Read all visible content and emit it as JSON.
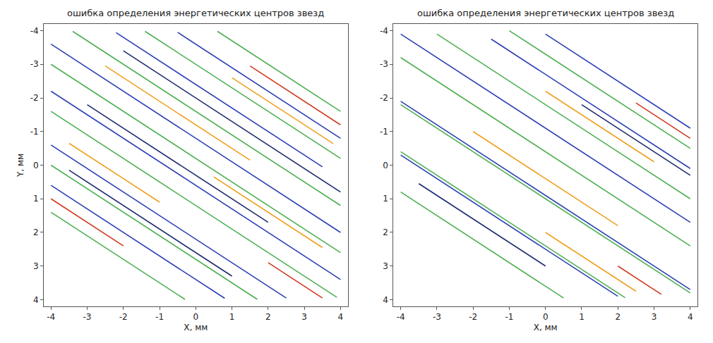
{
  "chart_data": [
    {
      "type": "line",
      "title": "ошибка определения энергетических центров звезд",
      "x_label": "X, мм",
      "y_label": "Y, мм",
      "xlim": [
        -4.2,
        4.2
      ],
      "ylim": [
        4.2,
        -4.2
      ],
      "xticks": [
        -4,
        -3,
        -2,
        -1,
        0,
        1,
        2,
        3,
        4
      ],
      "yticks": [
        -4,
        -3,
        -2,
        -1,
        0,
        1,
        2,
        3,
        4
      ],
      "grid": false,
      "series": [
        {
          "color": "#2b3fb5",
          "x": [
            -0.5,
            4,
            null,
            -2.2,
            3.5,
            null,
            -4,
            4,
            null,
            -4,
            4,
            null,
            -4,
            2.5,
            null,
            -4,
            0.8
          ],
          "values": [
            -3.95,
            -0.8,
            null,
            -3.94,
            0.05,
            null,
            -3.6,
            2.0,
            null,
            -2.2,
            3.4,
            null,
            -0.6,
            3.95,
            null,
            0.6,
            3.96
          ]
        },
        {
          "color": "#4caf50",
          "x": [
            0.6,
            4,
            null,
            -1.4,
            4,
            null,
            -3.4,
            4,
            null,
            -4,
            4,
            null,
            -4,
            3.9,
            null,
            -4,
            1.7,
            null,
            -4,
            -0.3
          ],
          "values": [
            -3.98,
            -1.6,
            null,
            -3.98,
            -0.2,
            null,
            -3.98,
            1.2,
            null,
            -3.0,
            2.6,
            null,
            -1.6,
            3.93,
            null,
            0.0,
            3.99,
            null,
            1.4,
            3.99
          ]
        },
        {
          "color": "#f0a020",
          "x": [
            1.0,
            3.8,
            null,
            -2.5,
            1.5,
            null,
            -3.5,
            -1,
            null,
            0.5,
            3.5
          ],
          "values": [
            -2.6,
            -0.64,
            null,
            -2.95,
            -0.15,
            null,
            -0.65,
            1.1,
            null,
            0.35,
            2.45
          ]
        },
        {
          "color": "#d03a20",
          "x": [
            1.5,
            4,
            null,
            -4,
            -2,
            null,
            2,
            3.5
          ],
          "values": [
            -2.95,
            -1.2,
            null,
            1.0,
            2.4,
            null,
            2.9,
            3.95
          ]
        },
        {
          "color": "#1c2a6e",
          "x": [
            -2,
            4,
            null,
            -3,
            2,
            null,
            -3.5,
            1
          ],
          "values": [
            -3.4,
            0.8,
            null,
            -1.8,
            1.7,
            null,
            0.15,
            3.3
          ]
        }
      ]
    },
    {
      "type": "line",
      "title": "ошибка определения энергетических центров звезд",
      "x_label": "X, мм",
      "xlim": [
        -4.2,
        4.2
      ],
      "ylim": [
        4.2,
        -4.2
      ],
      "xticks": [
        -4,
        -3,
        -2,
        -1,
        0,
        1,
        2,
        3,
        4
      ],
      "yticks": [
        -4,
        -3,
        -2,
        -1,
        0,
        1,
        2,
        3,
        4
      ],
      "grid": false,
      "series": [
        {
          "color": "#2b3fb5",
          "x": [
            0,
            4,
            null,
            -1.5,
            4,
            null,
            -4,
            4,
            null,
            -4,
            4,
            null,
            -4,
            2
          ],
          "values": [
            -3.9,
            -1.1,
            null,
            -3.75,
            0.1,
            null,
            -3.9,
            1.7,
            null,
            -1.9,
            3.7,
            null,
            -0.3,
            3.9
          ]
        },
        {
          "color": "#4caf50",
          "x": [
            -1,
            4,
            null,
            -3,
            4,
            null,
            -4,
            4,
            null,
            -4,
            4,
            null,
            -4,
            2.2,
            null,
            -4,
            0.5
          ],
          "values": [
            -4.0,
            -0.5,
            null,
            -3.9,
            1.0,
            null,
            -3.2,
            2.4,
            null,
            -1.8,
            3.8,
            null,
            -0.4,
            3.94,
            null,
            0.8,
            3.95
          ]
        },
        {
          "color": "#f0a020",
          "x": [
            0,
            3,
            null,
            -2,
            2,
            null,
            0,
            2.5
          ],
          "values": [
            -2.2,
            -0.1,
            null,
            -1.0,
            1.8,
            null,
            2.0,
            3.75
          ]
        },
        {
          "color": "#d03a20",
          "x": [
            2.5,
            4,
            null,
            2,
            3.2
          ],
          "values": [
            -1.85,
            -0.8,
            null,
            3.0,
            3.84
          ]
        },
        {
          "color": "#1c2a6e",
          "x": [
            1,
            4,
            null,
            -3.5,
            0
          ],
          "values": [
            -1.8,
            0.3,
            null,
            0.55,
            3.0
          ]
        }
      ]
    }
  ]
}
